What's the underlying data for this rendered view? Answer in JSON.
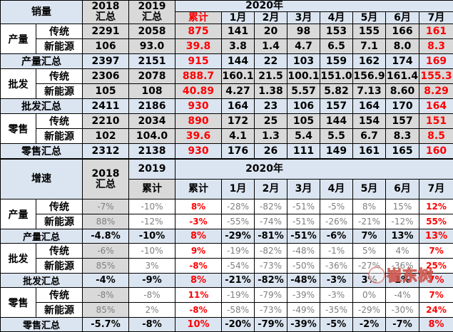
{
  "colors": {
    "header_blue": "#dbe5f1",
    "cell_gray": "#d9d9d9",
    "accent_red": "#ff0000",
    "muted_text": "#7f7f7f",
    "border": "#000000"
  },
  "sales": {
    "title": "销量",
    "col2018": "2018\n汇总",
    "col2019": "2019\n汇总",
    "year": "2020年",
    "cum_label": "累计",
    "months": [
      "1月",
      "2月",
      "3月",
      "4月",
      "5月",
      "6月",
      "7月"
    ],
    "rows": [
      {
        "type": "pair1",
        "group": "产量",
        "sub": "传统",
        "values": [
          "2291",
          "2058",
          "875",
          "141",
          "20",
          "98",
          "153",
          "155",
          "166",
          "161"
        ]
      },
      {
        "type": "pair2",
        "sub": "新能源",
        "values": [
          "106",
          "93.0",
          "39.8",
          "3.8",
          "1.4",
          "4.7",
          "6.5",
          "7.1",
          "8.0",
          "8.3"
        ]
      },
      {
        "type": "total",
        "label": "产量汇总",
        "values": [
          "2397",
          "2151",
          "915",
          "144",
          "22",
          "103",
          "159",
          "162",
          "174",
          "169"
        ]
      },
      {
        "type": "pair1",
        "group": "批发",
        "sub": "传统",
        "values": [
          "2306",
          "2078",
          "888.7",
          "160.1",
          "21.5",
          "100.1",
          "151.0",
          "156.9",
          "161.4",
          "155.3"
        ]
      },
      {
        "type": "pair2",
        "sub": "新能源",
        "values": [
          "105",
          "108",
          "40.89",
          "4.27",
          "1.38",
          "5.57",
          "5.82",
          "7.13",
          "8.60",
          "8.29"
        ]
      },
      {
        "type": "total",
        "label": "批发汇总",
        "values": [
          "2411",
          "2186",
          "930",
          "164",
          "23",
          "106",
          "157",
          "164",
          "170",
          "164"
        ]
      },
      {
        "type": "pair1",
        "group": "零售",
        "sub": "传统",
        "values": [
          "2210",
          "2034",
          "890",
          "172",
          "25",
          "105",
          "144",
          "154",
          "157",
          "151"
        ]
      },
      {
        "type": "pair2",
        "sub": "新能源",
        "values": [
          "102",
          "104.0",
          "39.6",
          "4.1",
          "1.3",
          "5.4",
          "5.5",
          "6.7",
          "8.3",
          "8.5"
        ]
      },
      {
        "type": "total",
        "label": "零售汇总",
        "values": [
          "2312",
          "2138",
          "930",
          "176",
          "26",
          "111",
          "149",
          "161",
          "165",
          "160"
        ]
      }
    ]
  },
  "growth": {
    "title": "增速",
    "col2018": "2018\n汇总",
    "col2019": "2019",
    "cum2019": "累计",
    "year": "2020年",
    "cum_label": "累计",
    "months": [
      "1月",
      "2月",
      "3月",
      "4月",
      "5月",
      "6月",
      "7月"
    ],
    "rows": [
      {
        "type": "pair1",
        "group": "产量",
        "sub": "传统",
        "values": [
          "-7%",
          "-10%",
          "8%",
          "-28%",
          "-82%",
          "-51%",
          "-5%",
          "8%",
          "15%",
          "12%"
        ]
      },
      {
        "type": "pair2",
        "sub": "新能源",
        "values": [
          "88%",
          "-12%",
          "-3%",
          "-55%",
          "-74%",
          "-51%",
          "-26%",
          "-21%",
          "-12%",
          "55%"
        ]
      },
      {
        "type": "total",
        "label": "产量汇总",
        "values": [
          "-4.8%",
          "-10%",
          "8%",
          "-29%",
          "-81%",
          "-51%",
          "-6%",
          "7%",
          "13%",
          "13%"
        ]
      },
      {
        "type": "pair1",
        "group": "批发",
        "sub": "传统",
        "values": [
          "-6%",
          "-10%",
          "9%",
          "-19%",
          "-82%",
          "-48%",
          "-1%",
          "5%",
          "4%",
          "7%"
        ]
      },
      {
        "type": "pair2",
        "sub": "新能源",
        "values": [
          "85%",
          "3%",
          "-8%",
          "-54%",
          "-73%",
          "-50%",
          "-36%",
          "-27%",
          "-36%",
          "25%"
        ]
      },
      {
        "type": "total",
        "label": "批发汇总",
        "values": [
          "-4%",
          "-9%",
          "8%",
          "-21%",
          "-82%",
          "-48%",
          "-3%",
          "3%",
          "1%",
          "7%"
        ]
      },
      {
        "type": "pair1",
        "group": "零售",
        "sub": "传统",
        "values": [
          "-8%",
          "-8%",
          "11%",
          "-19%",
          "-79%",
          "-39%",
          "-3%",
          "0%",
          "-4%",
          "7%"
        ]
      },
      {
        "type": "pair2",
        "sub": "新能源",
        "values": [
          "85%",
          "2%",
          "-8%",
          "-58%",
          "-73%",
          "-49%",
          "-35%",
          "-29%",
          "-30%",
          "24%"
        ]
      },
      {
        "type": "total",
        "label": "零售汇总",
        "values": [
          "-5.7%",
          "-8%",
          "10%",
          "-20%",
          "-79%",
          "-39%",
          "-5%",
          "-2%",
          "-7%",
          "8%"
        ]
      }
    ]
  },
  "watermark": {
    "text": "崔东树"
  }
}
